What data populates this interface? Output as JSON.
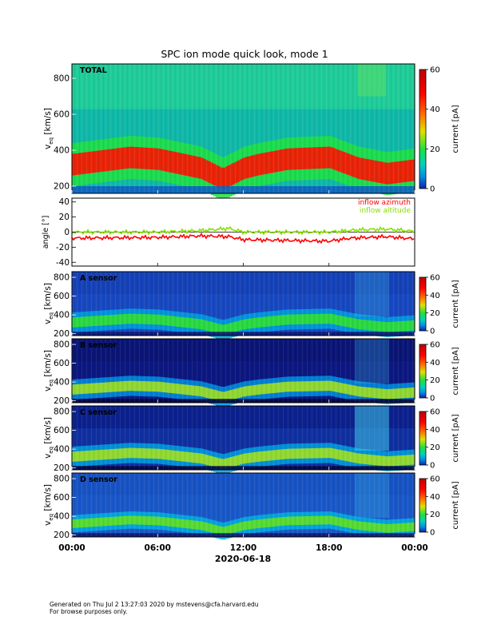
{
  "title": "SPC ion mode quick look, mode 1",
  "date_label": "2020-06-18",
  "x_ticks": [
    "00:00",
    "06:00",
    "12:00",
    "18:00",
    "00:00"
  ],
  "footer": {
    "line1": "Generated on Thu Jul  2 13:27:03 2020 by mstevens@cfa.harvard.edu",
    "line2": "For browse purposes only."
  },
  "chart_data": [
    {
      "type": "heatmap",
      "panel_label": "TOTAL",
      "ylabel_main": "v",
      "ylabel_sub": "eq",
      "ylabel_unit": "[km/s]",
      "y_ticks": [
        200,
        400,
        600,
        800
      ],
      "ylim": [
        160,
        880
      ],
      "colorbar": {
        "label": "current [pA]",
        "ticks": [
          0,
          20,
          40,
          60
        ],
        "range": [
          0,
          60
        ]
      },
      "peak_speed_kms": [
        {
          "t": 0,
          "v": 320
        },
        {
          "t": 4,
          "v": 360
        },
        {
          "t": 6,
          "v": 350
        },
        {
          "t": 9,
          "v": 300
        },
        {
          "t": 10.5,
          "v": 240
        },
        {
          "t": 12,
          "v": 300
        },
        {
          "t": 13,
          "v": 320
        },
        {
          "t": 15,
          "v": 350
        },
        {
          "t": 18,
          "v": 360
        },
        {
          "t": 20,
          "v": 300
        },
        {
          "t": 22,
          "v": 270
        },
        {
          "t": 24,
          "v": 290
        }
      ]
    },
    {
      "type": "line",
      "ylabel": "angle [°]",
      "y_ticks": [
        -40,
        -20,
        0,
        20,
        40
      ],
      "ylim": [
        -45,
        45
      ],
      "series": [
        {
          "name": "inflow azimuth",
          "color": "#ff0000",
          "points": [
            {
              "t": 0,
              "v": -8
            },
            {
              "t": 6,
              "v": -7
            },
            {
              "t": 9,
              "v": -5
            },
            {
              "t": 11,
              "v": -6
            },
            {
              "t": 12,
              "v": -10
            },
            {
              "t": 15,
              "v": -11
            },
            {
              "t": 18,
              "v": -12
            },
            {
              "t": 19.5,
              "v": -8
            },
            {
              "t": 22,
              "v": -6
            },
            {
              "t": 24,
              "v": -9
            }
          ]
        },
        {
          "name": "inflow altitude",
          "color": "#88e000",
          "points": [
            {
              "t": 0,
              "v": 0
            },
            {
              "t": 6,
              "v": 0
            },
            {
              "t": 9,
              "v": 2
            },
            {
              "t": 11,
              "v": 5
            },
            {
              "t": 12,
              "v": 0
            },
            {
              "t": 15,
              "v": 0
            },
            {
              "t": 18,
              "v": 0
            },
            {
              "t": 20,
              "v": 3
            },
            {
              "t": 22,
              "v": 4
            },
            {
              "t": 24,
              "v": 1
            }
          ]
        }
      ]
    },
    {
      "type": "heatmap",
      "panel_label": "A sensor",
      "ylabel_main": "v",
      "ylabel_sub": "eq",
      "ylabel_unit": "[km/s]",
      "y_ticks": [
        200,
        400,
        600,
        800
      ],
      "ylim": [
        180,
        860
      ],
      "colorbar": {
        "label": "current [pA]",
        "ticks": [
          0,
          20,
          40,
          60
        ],
        "range": [
          0,
          60
        ]
      }
    },
    {
      "type": "heatmap",
      "panel_label": "B sensor",
      "ylabel_main": "v",
      "ylabel_sub": "eq",
      "ylabel_unit": "[km/s]",
      "y_ticks": [
        200,
        400,
        600,
        800
      ],
      "ylim": [
        180,
        860
      ],
      "colorbar": {
        "label": "current [pA]",
        "ticks": [
          0,
          20,
          40,
          60
        ],
        "range": [
          0,
          60
        ]
      }
    },
    {
      "type": "heatmap",
      "panel_label": "C sensor",
      "ylabel_main": "v",
      "ylabel_sub": "eq",
      "ylabel_unit": "[km/s]",
      "y_ticks": [
        200,
        400,
        600,
        800
      ],
      "ylim": [
        180,
        860
      ],
      "colorbar": {
        "label": "current [pA]",
        "ticks": [
          0,
          20,
          40,
          60
        ],
        "range": [
          0,
          60
        ]
      }
    },
    {
      "type": "heatmap",
      "panel_label": "D sensor",
      "ylabel_main": "v",
      "ylabel_sub": "eq",
      "ylabel_unit": "[km/s]",
      "y_ticks": [
        200,
        400,
        600,
        800
      ],
      "ylim": [
        180,
        860
      ],
      "colorbar": {
        "label": "current [pA]",
        "ticks": [
          0,
          20,
          40,
          60
        ],
        "range": [
          0,
          60
        ]
      }
    }
  ]
}
